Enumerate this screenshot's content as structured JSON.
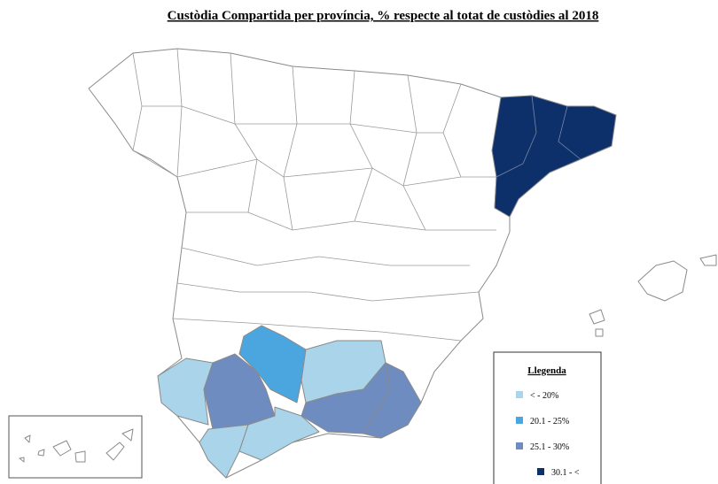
{
  "title": "Custòdia Compartida per província, % respecte al totat de custòdies al 2018",
  "legend": {
    "title": "Llegenda",
    "items": [
      {
        "label": "< - 20%",
        "color": "#a9d4ea"
      },
      {
        "label": "20.1 - 25%",
        "color": "#4ba6df"
      },
      {
        "label": "25.1 - 30%",
        "color": "#6f8cc1"
      },
      {
        "label": "30.1 - <",
        "color": "#0d2f6a"
      }
    ]
  }
}
